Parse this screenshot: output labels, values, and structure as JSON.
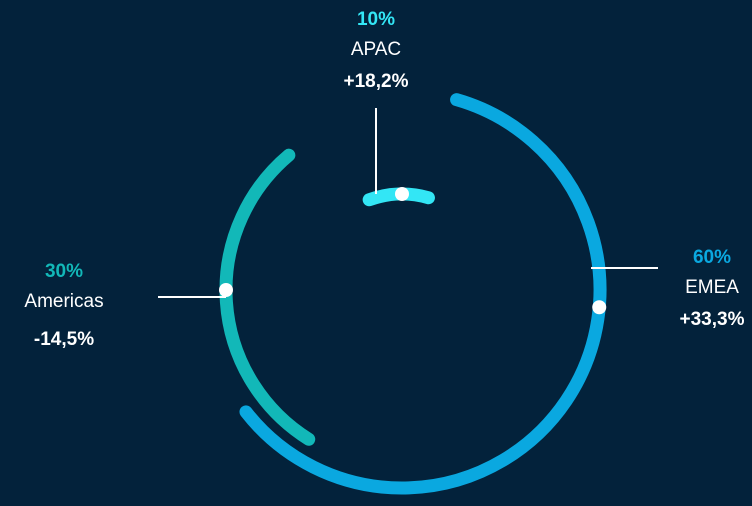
{
  "chart_data": {
    "type": "pie",
    "categories": [
      "APAC",
      "EMEA",
      "Americas"
    ],
    "values": [
      10,
      60,
      30
    ],
    "value_labels": [
      "10%",
      "60%",
      "30%"
    ],
    "growth": [
      "+18,2%",
      "+33,3%",
      "-14,5%"
    ],
    "colors": [
      "#33e6f5",
      "#0aa8e0",
      "#12b8b8"
    ]
  }
}
